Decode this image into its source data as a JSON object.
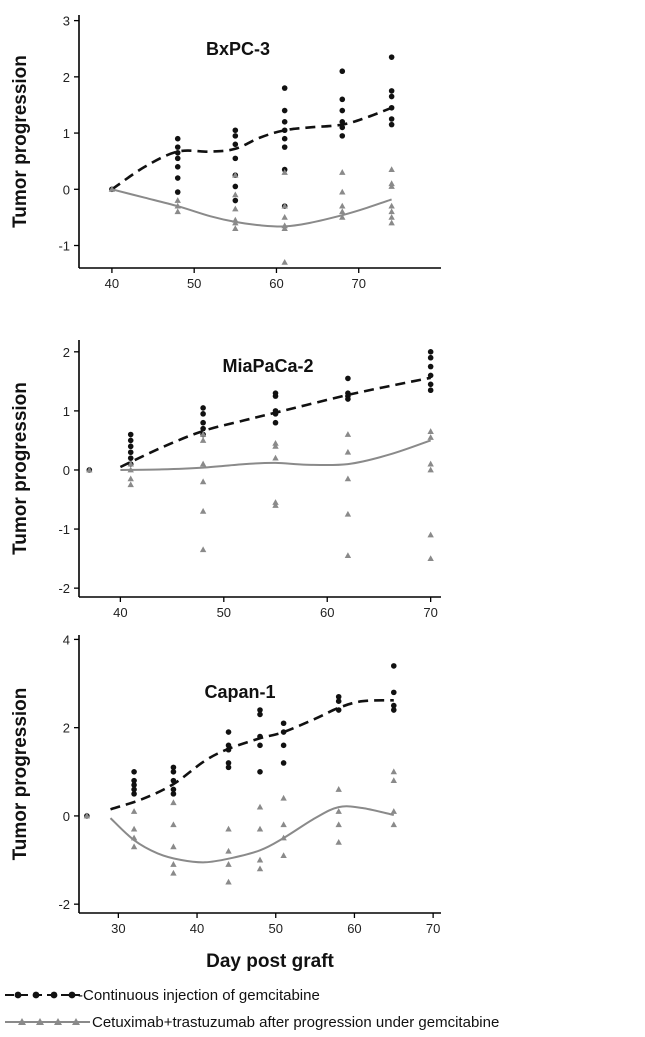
{
  "colors": {
    "gem": "#111111",
    "cet": "#8a8a8a",
    "axis": "#000000"
  },
  "legend": {
    "gem_label": "-Continuous injection of gemcitabine",
    "cet_label": "Cetuximab+trastuzumab after progression under gemcitabine"
  },
  "chart_data": [
    {
      "type": "scatter",
      "title": "BxPC-3",
      "ylabel": "Tumor progression",
      "xlabel": "",
      "xlim": [
        36,
        80
      ],
      "ylim": [
        -1.4,
        3.1
      ],
      "xticks": [
        40,
        50,
        60,
        70
      ],
      "yticks": [
        -1,
        0,
        1,
        2,
        3
      ],
      "series": [
        {
          "name": "Continuous injection of gemcitabine",
          "marker": "circle",
          "line": "dashed",
          "points": [
            [
              40,
              0
            ],
            [
              48,
              0.9
            ],
            [
              48,
              0.75
            ],
            [
              48,
              0.65
            ],
            [
              48,
              0.55
            ],
            [
              48,
              0.4
            ],
            [
              48,
              0.2
            ],
            [
              48,
              -0.05
            ],
            [
              55,
              1.05
            ],
            [
              55,
              0.95
            ],
            [
              55,
              0.8
            ],
            [
              55,
              0.55
            ],
            [
              55,
              0.25
            ],
            [
              55,
              0.05
            ],
            [
              55,
              -0.2
            ],
            [
              61,
              1.8
            ],
            [
              61,
              1.4
            ],
            [
              61,
              1.2
            ],
            [
              61,
              1.05
            ],
            [
              61,
              0.9
            ],
            [
              61,
              0.75
            ],
            [
              61,
              0.35
            ],
            [
              61,
              -0.3
            ],
            [
              68,
              2.1
            ],
            [
              68,
              1.6
            ],
            [
              68,
              1.4
            ],
            [
              68,
              1.2
            ],
            [
              68,
              1.1
            ],
            [
              68,
              0.95
            ],
            [
              74,
              2.35
            ],
            [
              74,
              1.75
            ],
            [
              74,
              1.65
            ],
            [
              74,
              1.45
            ],
            [
              74,
              1.25
            ],
            [
              74,
              1.15
            ]
          ],
          "fit": [
            [
              40,
              0
            ],
            [
              44,
              0.4
            ],
            [
              48,
              0.67
            ],
            [
              52,
              0.67
            ],
            [
              55,
              0.72
            ],
            [
              58,
              0.92
            ],
            [
              61,
              1.05
            ],
            [
              64,
              1.1
            ],
            [
              68,
              1.15
            ],
            [
              71,
              1.28
            ],
            [
              74,
              1.45
            ]
          ]
        },
        {
          "name": "Cetuximab+trastuzumab after progression under gemcitabine",
          "marker": "triangle",
          "line": "solid",
          "points": [
            [
              40,
              0
            ],
            [
              48,
              -0.2
            ],
            [
              48,
              -0.3
            ],
            [
              48,
              -0.4
            ],
            [
              55,
              0.25
            ],
            [
              55,
              -0.1
            ],
            [
              55,
              -0.35
            ],
            [
              55,
              -0.55
            ],
            [
              55,
              -0.6
            ],
            [
              55,
              -0.7
            ],
            [
              61,
              0.3
            ],
            [
              61,
              -0.3
            ],
            [
              61,
              -0.5
            ],
            [
              61,
              -0.65
            ],
            [
              61,
              -0.7
            ],
            [
              61,
              -1.3
            ],
            [
              68,
              0.3
            ],
            [
              68,
              -0.05
            ],
            [
              68,
              -0.3
            ],
            [
              68,
              -0.4
            ],
            [
              68,
              -0.5
            ],
            [
              74,
              0.35
            ],
            [
              74,
              0.1
            ],
            [
              74,
              0.05
            ],
            [
              74,
              -0.3
            ],
            [
              74,
              -0.4
            ],
            [
              74,
              -0.5
            ],
            [
              74,
              -0.6
            ]
          ],
          "fit": [
            [
              40,
              0
            ],
            [
              44,
              -0.15
            ],
            [
              48,
              -0.3
            ],
            [
              52,
              -0.48
            ],
            [
              55,
              -0.58
            ],
            [
              58,
              -0.64
            ],
            [
              61,
              -0.66
            ],
            [
              64,
              -0.6
            ],
            [
              68,
              -0.46
            ],
            [
              71,
              -0.33
            ],
            [
              74,
              -0.18
            ]
          ]
        }
      ]
    },
    {
      "type": "scatter",
      "title": "MiaPaCa-2",
      "ylabel": "Tumor progression",
      "xlabel": "",
      "xlim": [
        36,
        71
      ],
      "ylim": [
        -2.15,
        2.2
      ],
      "xticks": [
        40,
        50,
        60,
        70
      ],
      "yticks": [
        -2,
        -1,
        0,
        1,
        2
      ],
      "series": [
        {
          "name": "Continuous injection of gemcitabine",
          "marker": "circle",
          "line": "dashed",
          "points": [
            [
              37,
              0
            ],
            [
              41,
              0.6
            ],
            [
              41,
              0.5
            ],
            [
              41,
              0.4
            ],
            [
              41,
              0.3
            ],
            [
              41,
              0.2
            ],
            [
              41,
              0.1
            ],
            [
              48,
              1.05
            ],
            [
              48,
              0.95
            ],
            [
              48,
              0.8
            ],
            [
              48,
              0.7
            ],
            [
              48,
              0.6
            ],
            [
              55,
              1.3
            ],
            [
              55,
              1.25
            ],
            [
              55,
              1.0
            ],
            [
              55,
              0.95
            ],
            [
              55,
              0.8
            ],
            [
              62,
              1.55
            ],
            [
              62,
              1.3
            ],
            [
              62,
              1.25
            ],
            [
              62,
              1.2
            ],
            [
              70,
              2.0
            ],
            [
              70,
              1.9
            ],
            [
              70,
              1.75
            ],
            [
              70,
              1.6
            ],
            [
              70,
              1.45
            ],
            [
              70,
              1.35
            ]
          ],
          "fit": [
            [
              40,
              0.05
            ],
            [
              44,
              0.38
            ],
            [
              48,
              0.66
            ],
            [
              52,
              0.84
            ],
            [
              55,
              0.97
            ],
            [
              58,
              1.1
            ],
            [
              62,
              1.27
            ],
            [
              66,
              1.42
            ],
            [
              70,
              1.56
            ]
          ]
        },
        {
          "name": "Cetuximab+trastuzumab after progression under gemcitabine",
          "marker": "triangle",
          "line": "solid",
          "points": [
            [
              37,
              0
            ],
            [
              41,
              0.1
            ],
            [
              41,
              0.0
            ],
            [
              41,
              -0.15
            ],
            [
              41,
              -0.25
            ],
            [
              48,
              0.6
            ],
            [
              48,
              0.5
            ],
            [
              48,
              0.1
            ],
            [
              48,
              -0.2
            ],
            [
              48,
              -0.7
            ],
            [
              48,
              -1.35
            ],
            [
              55,
              0.45
            ],
            [
              55,
              0.4
            ],
            [
              55,
              0.2
            ],
            [
              55,
              -0.55
            ],
            [
              55,
              -0.6
            ],
            [
              62,
              0.6
            ],
            [
              62,
              0.3
            ],
            [
              62,
              -0.15
            ],
            [
              62,
              -0.75
            ],
            [
              62,
              -1.45
            ],
            [
              70,
              0.65
            ],
            [
              70,
              0.55
            ],
            [
              70,
              0.1
            ],
            [
              70,
              0.0
            ],
            [
              70,
              -1.1
            ],
            [
              70,
              -1.5
            ]
          ],
          "fit": [
            [
              40,
              0.0
            ],
            [
              44,
              0.01
            ],
            [
              48,
              0.04
            ],
            [
              52,
              0.1
            ],
            [
              55,
              0.12
            ],
            [
              58,
              0.09
            ],
            [
              62,
              0.1
            ],
            [
              66,
              0.26
            ],
            [
              70,
              0.5
            ]
          ]
        }
      ]
    },
    {
      "type": "scatter",
      "title": "Capan-1",
      "ylabel": "Tumor progression",
      "xlabel": "Day post graft",
      "xlim": [
        25,
        71
      ],
      "ylim": [
        -2.2,
        4.1
      ],
      "xticks": [
        30,
        40,
        50,
        60,
        70
      ],
      "yticks": [
        -2,
        0,
        2,
        4
      ],
      "series": [
        {
          "name": "Continuous injection of gemcitabine",
          "marker": "circle",
          "line": "dashed",
          "points": [
            [
              26,
              0
            ],
            [
              32,
              1.0
            ],
            [
              32,
              0.8
            ],
            [
              32,
              0.7
            ],
            [
              32,
              0.6
            ],
            [
              32,
              0.5
            ],
            [
              37,
              1.1
            ],
            [
              37,
              1.0
            ],
            [
              37,
              0.8
            ],
            [
              37,
              0.6
            ],
            [
              37,
              0.5
            ],
            [
              44,
              1.9
            ],
            [
              44,
              1.6
            ],
            [
              44,
              1.5
            ],
            [
              44,
              1.2
            ],
            [
              44,
              1.1
            ],
            [
              48,
              2.4
            ],
            [
              48,
              2.3
            ],
            [
              48,
              1.8
            ],
            [
              48,
              1.6
            ],
            [
              48,
              1.0
            ],
            [
              51,
              2.1
            ],
            [
              51,
              1.9
            ],
            [
              51,
              1.6
            ],
            [
              51,
              1.2
            ],
            [
              58,
              2.7
            ],
            [
              58,
              2.6
            ],
            [
              58,
              2.4
            ],
            [
              65,
              3.4
            ],
            [
              65,
              2.8
            ],
            [
              65,
              2.5
            ],
            [
              65,
              2.4
            ]
          ],
          "fit": [
            [
              29,
              0.15
            ],
            [
              33,
              0.38
            ],
            [
              37,
              0.72
            ],
            [
              41,
              1.25
            ],
            [
              44,
              1.52
            ],
            [
              48,
              1.76
            ],
            [
              51,
              1.9
            ],
            [
              55,
              2.2
            ],
            [
              58,
              2.45
            ],
            [
              61,
              2.6
            ],
            [
              65,
              2.62
            ]
          ]
        },
        {
          "name": "Cetuximab+trastuzumab after progression under gemcitabine",
          "marker": "triangle",
          "line": "solid",
          "points": [
            [
              26,
              0
            ],
            [
              32,
              0.1
            ],
            [
              32,
              -0.3
            ],
            [
              32,
              -0.5
            ],
            [
              32,
              -0.7
            ],
            [
              37,
              0.3
            ],
            [
              37,
              -0.2
            ],
            [
              37,
              -0.7
            ],
            [
              37,
              -1.1
            ],
            [
              37,
              -1.3
            ],
            [
              44,
              -0.3
            ],
            [
              44,
              -0.8
            ],
            [
              44,
              -1.1
            ],
            [
              44,
              -1.5
            ],
            [
              48,
              0.2
            ],
            [
              48,
              -0.3
            ],
            [
              48,
              -1.0
            ],
            [
              48,
              -1.2
            ],
            [
              51,
              0.4
            ],
            [
              51,
              -0.2
            ],
            [
              51,
              -0.5
            ],
            [
              51,
              -0.9
            ],
            [
              58,
              0.6
            ],
            [
              58,
              0.1
            ],
            [
              58,
              -0.2
            ],
            [
              58,
              -0.6
            ],
            [
              65,
              1.0
            ],
            [
              65,
              0.8
            ],
            [
              65,
              0.1
            ],
            [
              65,
              -0.2
            ]
          ],
          "fit": [
            [
              29,
              -0.05
            ],
            [
              32,
              -0.55
            ],
            [
              35,
              -0.85
            ],
            [
              38,
              -1.0
            ],
            [
              41,
              -1.05
            ],
            [
              44,
              -0.97
            ],
            [
              48,
              -0.78
            ],
            [
              51,
              -0.5
            ],
            [
              55,
              -0.05
            ],
            [
              58,
              0.2
            ],
            [
              61,
              0.18
            ],
            [
              65,
              0.02
            ]
          ]
        }
      ]
    }
  ]
}
